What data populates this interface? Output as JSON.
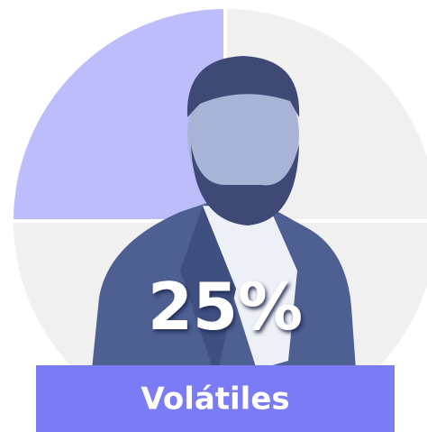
{
  "chart_data": {
    "type": "pie",
    "categories": [
      "Volátiles"
    ],
    "values": [
      25
    ],
    "value_labels": [
      "25%"
    ],
    "total": 100,
    "color": "#bdbdfb",
    "rest_color": "#f0f0f0",
    "label_color": "#7b7bf5"
  }
}
